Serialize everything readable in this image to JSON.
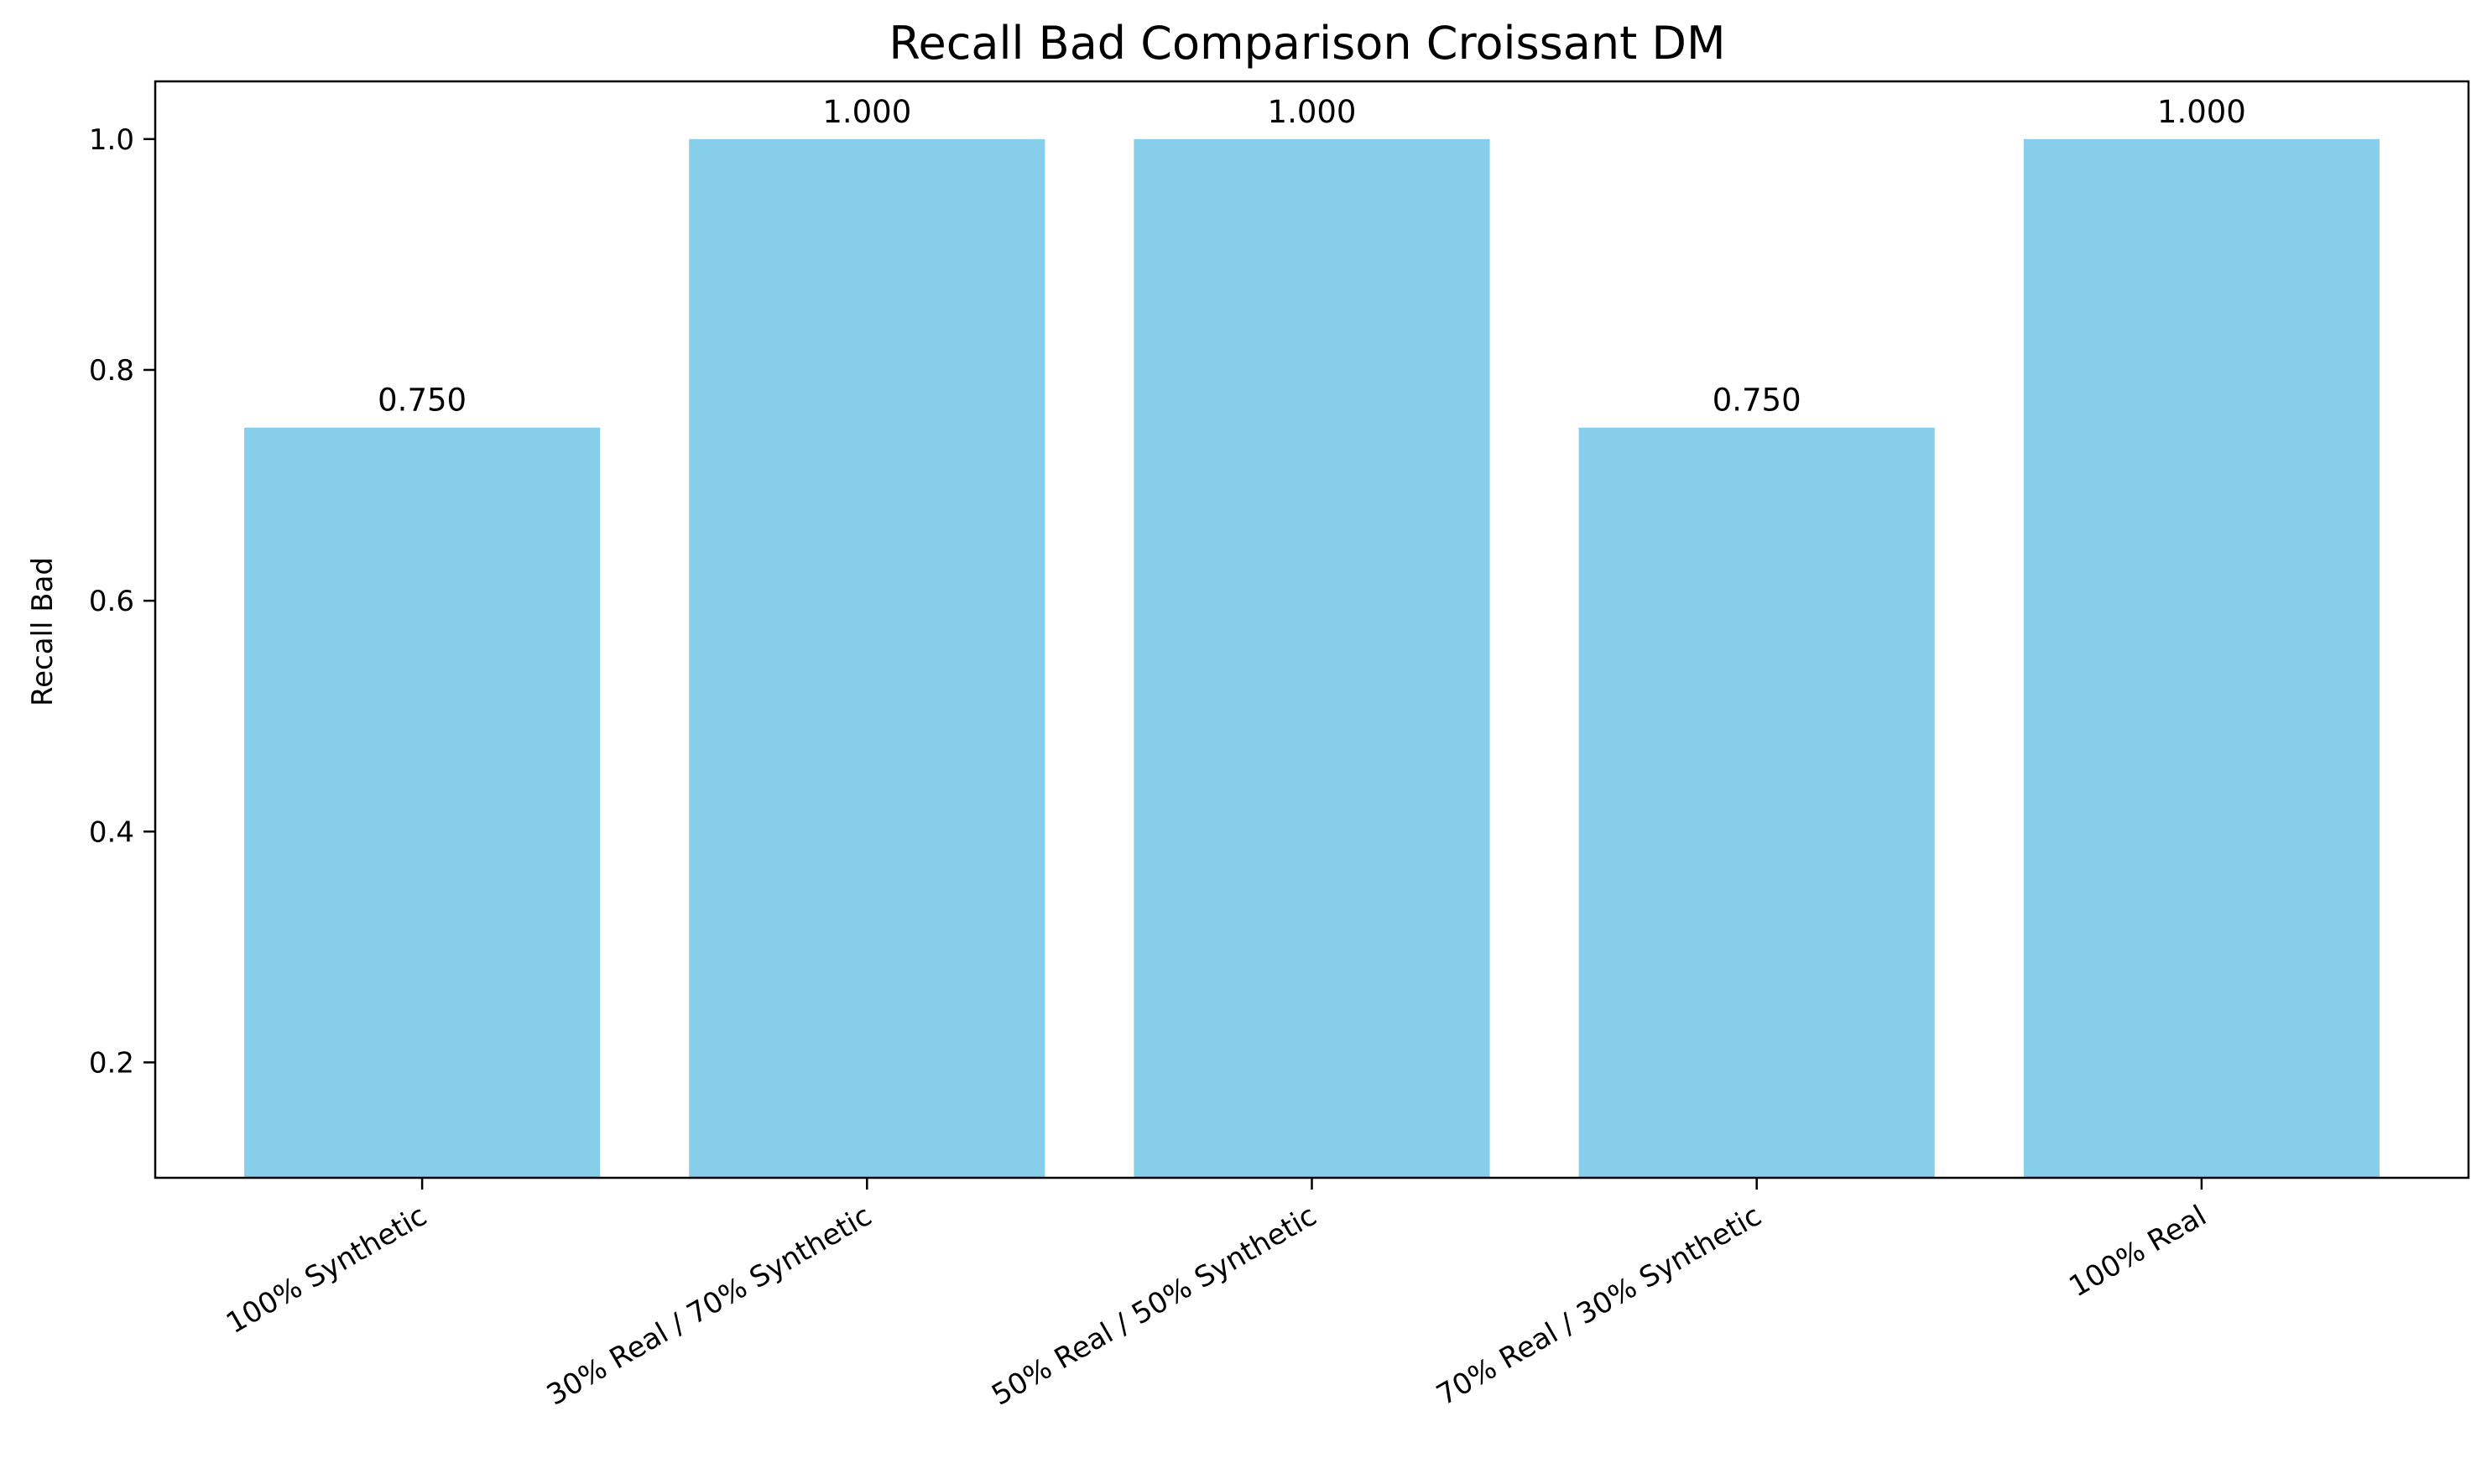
{
  "chart_data": {
    "type": "bar",
    "title": "Recall Bad Comparison Croissant DM",
    "xlabel": "",
    "ylabel": "Recall Bad",
    "categories": [
      "100% Synthetic",
      "30% Real / 70% Synthetic",
      "50% Real / 50% Synthetic",
      "70% Real / 30% Synthetic",
      "100% Real"
    ],
    "values": [
      0.75,
      1.0,
      1.0,
      0.75,
      1.0
    ],
    "value_labels": [
      "0.750",
      "1.000",
      "1.000",
      "0.750",
      "1.000"
    ],
    "ylim": [
      0.1,
      1.05
    ],
    "yticks": [
      0.2,
      0.4,
      0.6,
      0.8,
      1.0
    ],
    "ytick_labels": [
      "0.2",
      "0.4",
      "0.6",
      "0.8",
      "1.0"
    ],
    "grid": false,
    "legend": "none",
    "bar_color": "#87CEEB",
    "axis_color": "#000000"
  }
}
